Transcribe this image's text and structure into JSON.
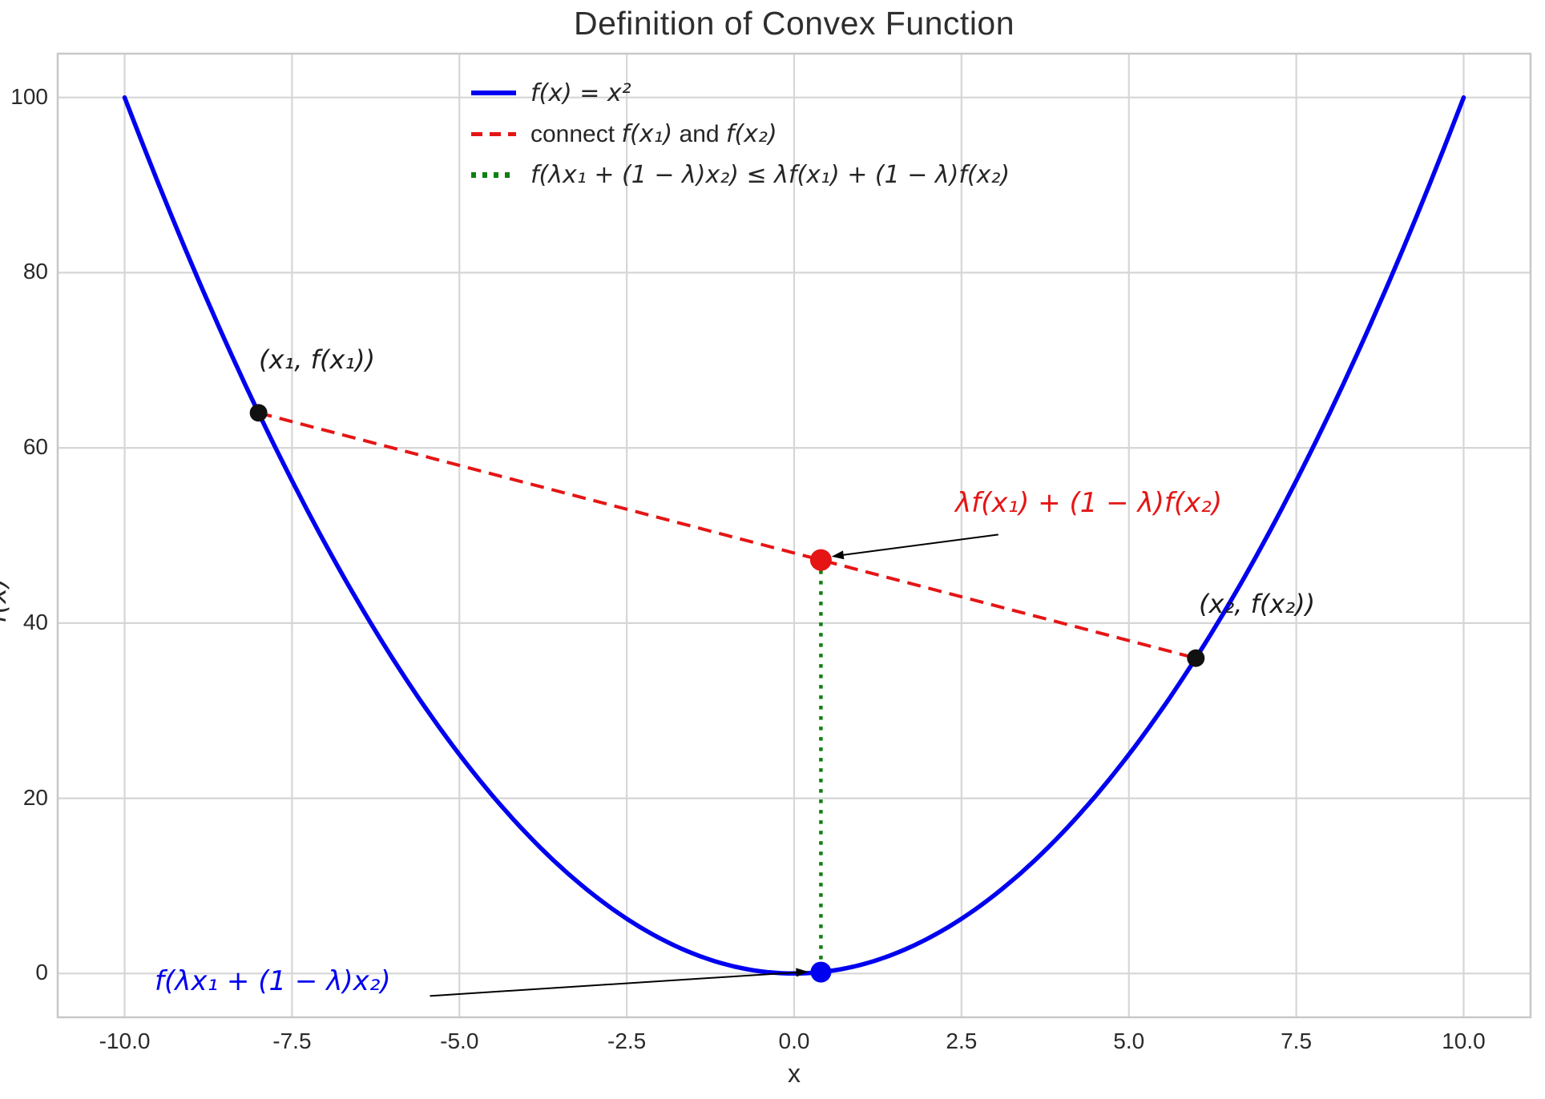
{
  "figure": {
    "title": "Definition of Convex Function",
    "xlabel": "x",
    "ylabel_clipped": "f(x)"
  },
  "legend": {
    "items": [
      {
        "label": "f(x) = x²",
        "color": "#0000f0",
        "style": "solid"
      },
      {
        "parts": [
          "connect ",
          "f(x₁)",
          " and ",
          "f(x₂)"
        ],
        "color": "#e51515",
        "style": "dashed"
      },
      {
        "label": "f(λx₁ + (1 − λ)x₂) ≤ λf(x₁) + (1 − λ)f(x₂)",
        "color": "#0e8010",
        "style": "dotted"
      }
    ]
  },
  "annotations": {
    "point1_label": "(x₁, f(x₁))",
    "point2_label": "(x₂, f(x₂))",
    "red_label": "λf(x₁) + (1 − λ)f(x₂)",
    "blue_label": "f(λx₁ + (1 − λ)x₂)"
  },
  "chart_data": {
    "type": "line",
    "title": "Definition of Convex Function",
    "xlabel": "x",
    "ylabel": "f(x)",
    "xlim": [
      -11,
      11
    ],
    "ylim": [
      -5,
      105
    ],
    "grid": true,
    "legend_position": "upper center",
    "x_tick_values": [
      -10,
      -7.5,
      -5,
      -2.5,
      0,
      2.5,
      5,
      7.5,
      10
    ],
    "x_tick_labels": [
      "-10.0",
      "-7.5",
      "-5.0",
      "-2.5",
      "0.0",
      "2.5",
      "5.0",
      "7.5",
      "10.0"
    ],
    "y_tick_values": [
      0,
      20,
      40,
      60,
      80,
      100
    ],
    "y_tick_labels": [
      "0",
      "20",
      "40",
      "60",
      "80",
      "100"
    ],
    "series": [
      {
        "name": "f(x) = x²",
        "kind": "function",
        "expr": "x^2",
        "x_min": -10,
        "x_max": 10,
        "color": "#0000f0",
        "style": "solid",
        "width": 5.5
      },
      {
        "name": "connect f(x₁) and f(x₂)",
        "kind": "segment",
        "points": [
          [
            -8,
            64
          ],
          [
            6,
            36
          ]
        ],
        "color": "#e51515",
        "style": "dashed",
        "width": 4
      },
      {
        "name": "f(λx₁ + (1 − λ)x₂) ≤ λf(x₁) + (1 − λ)f(x₂)",
        "kind": "segment",
        "points": [
          [
            0.4,
            47.2
          ],
          [
            0.4,
            0.16
          ]
        ],
        "color": "#0e8010",
        "style": "dotted",
        "width": 4.5
      }
    ],
    "markers": [
      {
        "x": -8,
        "y": 64,
        "color": "#111111",
        "r": 11,
        "label": "(x₁, f(x₁))"
      },
      {
        "x": 6,
        "y": 36,
        "color": "#111111",
        "r": 11,
        "label": "(x₂, f(x₂))"
      },
      {
        "x": 0.4,
        "y": 47.2,
        "color": "#e51515",
        "r": 13.5,
        "label": "λf(x₁) + (1 − λ)f(x₂)"
      },
      {
        "x": 0.4,
        "y": 0.16,
        "color": "#0000f0",
        "r": 13,
        "label": "f(λx₁ + (1 − λ)x₂)"
      }
    ],
    "arrows": [
      {
        "from": [
          3.05,
          50.1
        ],
        "to": [
          0.56,
          47.6
        ]
      },
      {
        "from": [
          -5.44,
          -2.56
        ],
        "to": [
          0.21,
          0.21
        ]
      }
    ]
  },
  "colors": {
    "background": "#ffffff",
    "grid": "#d6d6d6",
    "spine": "#c8c8c8",
    "text": "#262626",
    "curve_blue": "#0000f0",
    "chord_red": "#e51515",
    "lambda_green": "#0e8010",
    "marker_black": "#111111"
  }
}
